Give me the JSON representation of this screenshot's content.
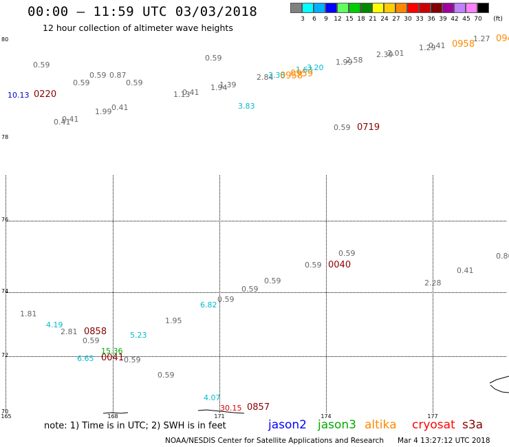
{
  "header": {
    "title": "00:00 – 11:59 UTC 03/03/2018",
    "subtitle": "12 hour collection of altimeter wave heights"
  },
  "color_scale": {
    "unit_label": "(ft)",
    "bins": [
      {
        "label": "3",
        "color": "#808080"
      },
      {
        "label": "6",
        "color": "#00ffff"
      },
      {
        "label": "9",
        "color": "#00b0ff"
      },
      {
        "label": "12",
        "color": "#0000ff"
      },
      {
        "label": "15",
        "color": "#60ff60"
      },
      {
        "label": "18",
        "color": "#00cc00"
      },
      {
        "label": "21",
        "color": "#008800"
      },
      {
        "label": "24",
        "color": "#ffff00"
      },
      {
        "label": "27",
        "color": "#ffcc00"
      },
      {
        "label": "30",
        "color": "#ff8800"
      },
      {
        "label": "33",
        "color": "#ff0000"
      },
      {
        "label": "36",
        "color": "#cc0000"
      },
      {
        "label": "39",
        "color": "#800000"
      },
      {
        "label": "42",
        "color": "#a000a0"
      },
      {
        "label": "45",
        "color": "#c080ff"
      },
      {
        "label": "70",
        "color": "#ff80ff"
      },
      {
        "label": "",
        "color": "#000000"
      }
    ]
  },
  "axes": {
    "lat_labels": [
      "80",
      "78",
      "76",
      "74",
      "72",
      "70"
    ],
    "lon_labels": [
      "165",
      "168",
      "171",
      "174",
      "177"
    ]
  },
  "observations": [
    {
      "text": "0.59",
      "color": "#666666"
    },
    {
      "text": "10.13",
      "color": "#0000cc"
    },
    {
      "text": "0.59",
      "color": "#666666"
    },
    {
      "text": "0.59",
      "color": "#666666"
    },
    {
      "text": "0.87",
      "color": "#666666"
    },
    {
      "text": "0.59",
      "color": "#666666"
    },
    {
      "text": "1.99",
      "color": "#666666"
    },
    {
      "text": "0.41",
      "color": "#666666"
    },
    {
      "text": "0.41",
      "color": "#666666"
    },
    {
      "text": "0.41",
      "color": "#666666"
    },
    {
      "text": "1.13",
      "color": "#666666"
    },
    {
      "text": "0.41",
      "color": "#666666"
    },
    {
      "text": "0.59",
      "color": "#666666"
    },
    {
      "text": "1.94",
      "color": "#666666"
    },
    {
      "text": "1.39",
      "color": "#666666"
    },
    {
      "text": "3.83",
      "color": "#00bbcc"
    },
    {
      "text": "2.84",
      "color": "#666666"
    },
    {
      "text": "3.38",
      "color": "#00bbcc"
    },
    {
      "text": "1.63",
      "color": "#00bbcc"
    },
    {
      "text": "3.20",
      "color": "#00bbcc"
    },
    {
      "text": "1.99",
      "color": "#666666"
    },
    {
      "text": "2.58",
      "color": "#666666"
    },
    {
      "text": "2.39",
      "color": "#666666"
    },
    {
      "text": "2.01",
      "color": "#666666"
    },
    {
      "text": "1.29",
      "color": "#666666"
    },
    {
      "text": "0.41",
      "color": "#666666"
    },
    {
      "text": "1.27",
      "color": "#666666"
    },
    {
      "text": "0.59",
      "color": "#666666"
    },
    {
      "text": "0.59",
      "color": "#666666"
    },
    {
      "text": "0.59",
      "color": "#666666"
    },
    {
      "text": "0.80",
      "color": "#666666"
    },
    {
      "text": "0.41",
      "color": "#666666"
    },
    {
      "text": "2.28",
      "color": "#666666"
    },
    {
      "text": "0.59",
      "color": "#666666"
    },
    {
      "text": "0.59",
      "color": "#666666"
    },
    {
      "text": "0.59",
      "color": "#666666"
    },
    {
      "text": "6.82",
      "color": "#00bbcc"
    },
    {
      "text": "1.81",
      "color": "#666666"
    },
    {
      "text": "4.19",
      "color": "#00bbcc"
    },
    {
      "text": "2.81",
      "color": "#666666"
    },
    {
      "text": "1.95",
      "color": "#666666"
    },
    {
      "text": "0.59",
      "color": "#666666"
    },
    {
      "text": "5.23",
      "color": "#00bbcc"
    },
    {
      "text": "15.36",
      "color": "#00aa00"
    },
    {
      "text": "6.65",
      "color": "#00bbcc"
    },
    {
      "text": "0.59",
      "color": "#666666"
    },
    {
      "text": "0.59",
      "color": "#666666"
    },
    {
      "text": "4.07",
      "color": "#00bbcc"
    },
    {
      "text": "30.15",
      "color": "#dd0000"
    }
  ],
  "pass_times": [
    {
      "text": "0220",
      "color": "#880000"
    },
    {
      "text": "0958",
      "color": "#ff8800"
    },
    {
      "text": "0959",
      "color": "#ff8800"
    },
    {
      "text": "0958",
      "color": "#ff8800"
    },
    {
      "text": "094",
      "color": "#ff8800"
    },
    {
      "text": "0719",
      "color": "#880000"
    },
    {
      "text": "0040",
      "color": "#880000"
    },
    {
      "text": "0858",
      "color": "#880000"
    },
    {
      "text": "0041",
      "color": "#880000"
    },
    {
      "text": "0857",
      "color": "#880000"
    }
  ],
  "note": "note: 1) Time is in UTC; 2) SWH is in feet",
  "legend": [
    {
      "name": "jason2",
      "color": "#0000ff"
    },
    {
      "name": "jason3",
      "color": "#00aa00"
    },
    {
      "name": "altika",
      "color": "#ff8800"
    },
    {
      "name": "cryosat",
      "color": "#ff0000"
    },
    {
      "name": "s3a",
      "color": "#880000"
    }
  ],
  "footer": {
    "agency": "NOAA/NESDIS Center for Satellite Applications and Research",
    "generated": "Mar  4 13:27:12 UTC 2018"
  }
}
